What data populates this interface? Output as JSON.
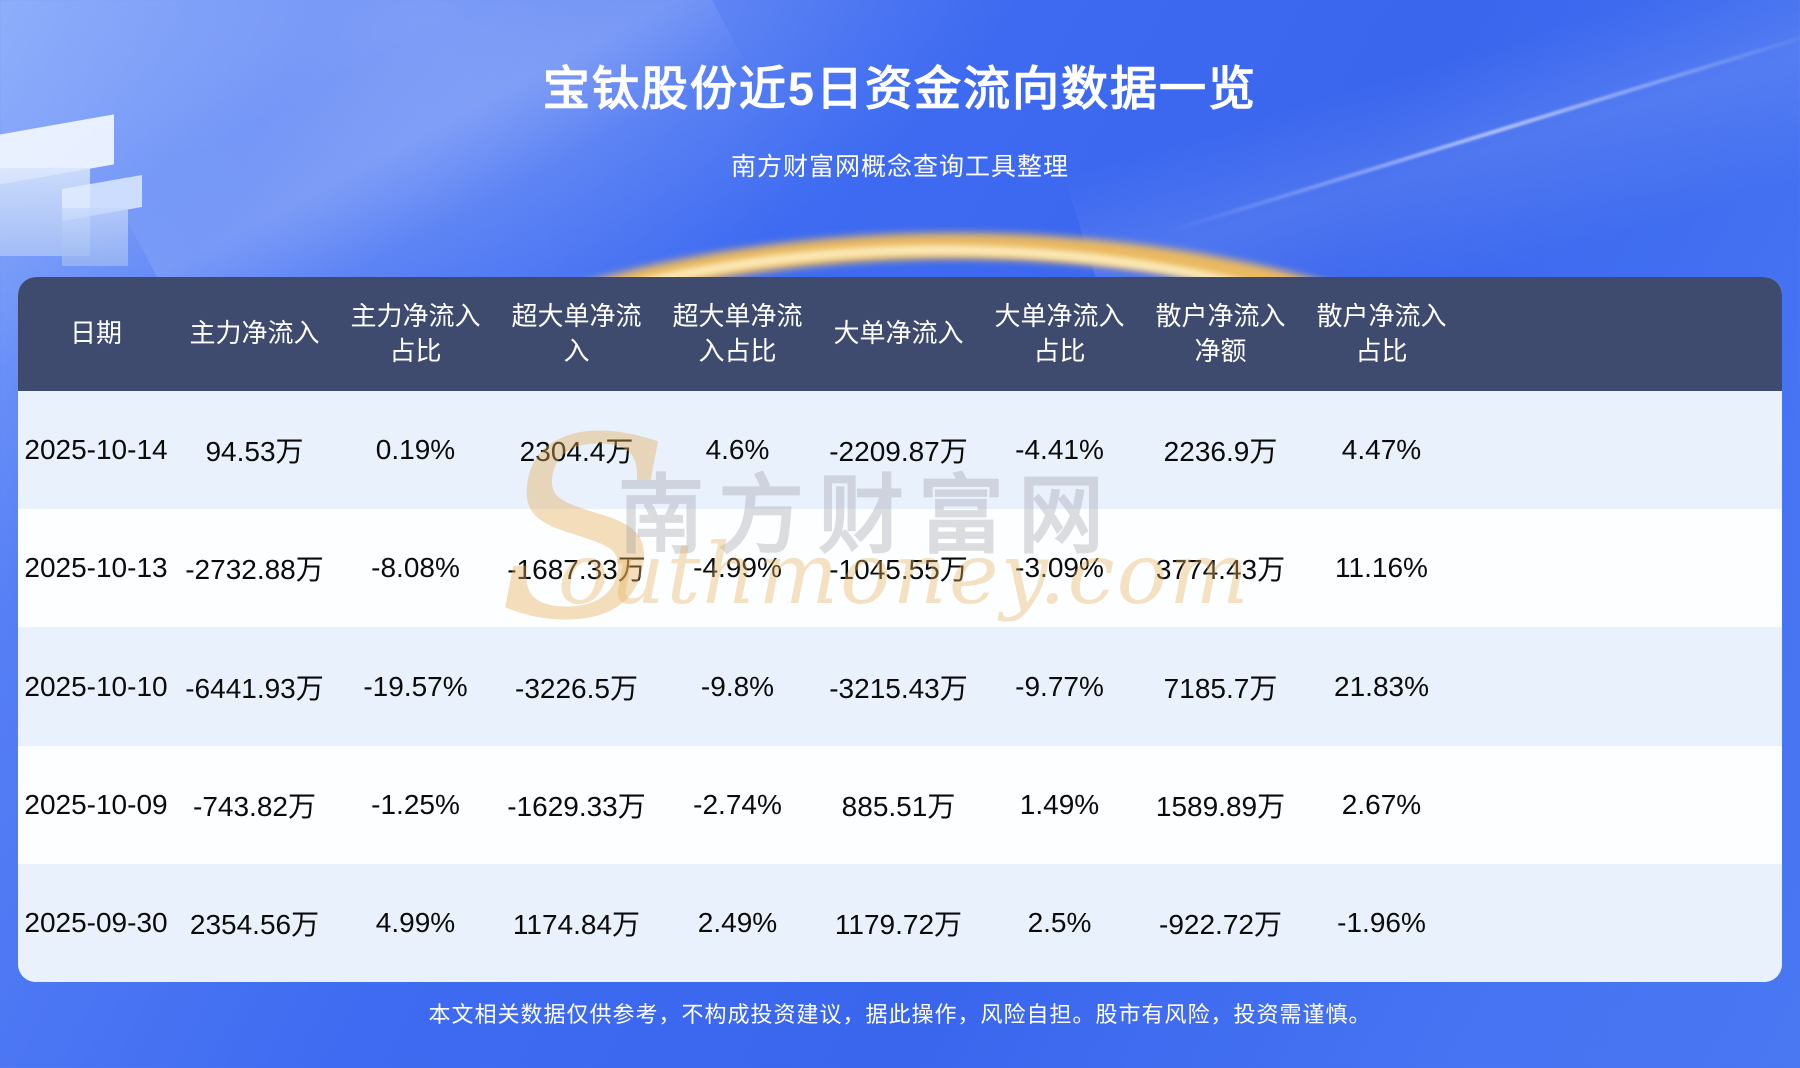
{
  "page": {
    "title": "宝钛股份近5日资金流向数据一览",
    "subtitle": "南方财富网概念查询工具整理",
    "disclaimer": "本文相关数据仅供参考，不构成投资建议，据此操作，风险自担。股市有风险，投资需谨慎。"
  },
  "watermark": {
    "initial": "S",
    "cn": "南方财富网",
    "en_rest": "outhmoney.com"
  },
  "colors": {
    "background_blue": "#3e6bf1",
    "header_bg": "#3f4b6e",
    "row_alt_blue": "#e9f1fc",
    "row_white": "#fdfeff",
    "accent_gold": "#f3bd59",
    "text_white": "#ffffff",
    "text_black": "#0b0b0b"
  },
  "chart_data": {
    "type": "table",
    "title": "宝钛股份近5日资金流向数据一览",
    "columns": [
      "日期",
      "主力净流入",
      "主力净流入占比",
      "超大单净流入",
      "超大单净流入占比",
      "大单净流入",
      "大单净流入占比",
      "散户净流入净额",
      "散户净流入占比"
    ],
    "rows": [
      [
        "2025-10-14",
        "94.53万",
        "0.19%",
        "2304.4万",
        "4.6%",
        "-2209.87万",
        "-4.41%",
        "2236.9万",
        "4.47%"
      ],
      [
        "2025-10-13",
        "-2732.88万",
        "-8.08%",
        "-1687.33万",
        "-4.99%",
        "-1045.55万",
        "-3.09%",
        "3774.43万",
        "11.16%"
      ],
      [
        "2025-10-10",
        "-6441.93万",
        "-19.57%",
        "-3226.5万",
        "-9.8%",
        "-3215.43万",
        "-9.77%",
        "7185.7万",
        "21.83%"
      ],
      [
        "2025-10-09",
        "-743.82万",
        "-1.25%",
        "-1629.33万",
        "-2.74%",
        "885.51万",
        "1.49%",
        "1589.89万",
        "2.67%"
      ],
      [
        "2025-09-30",
        "2354.56万",
        "4.99%",
        "1174.84万",
        "2.49%",
        "1179.72万",
        "2.5%",
        "-922.72万",
        "-1.96%"
      ]
    ]
  }
}
